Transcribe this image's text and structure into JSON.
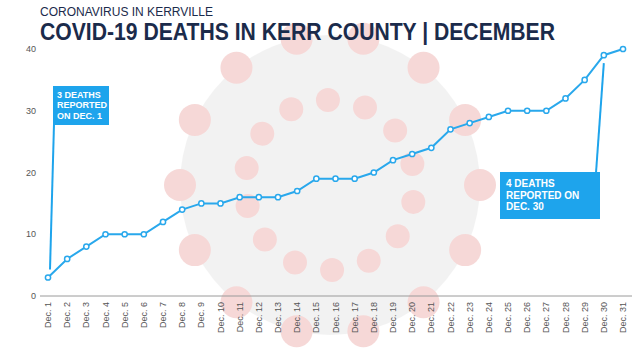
{
  "chart_data": {
    "type": "line",
    "subtitle": "CORONAVIRUS IN KERRVILLE",
    "title": "COVID-19 DEATHS IN KERR COUNTY | DECEMBER",
    "categories": [
      "Dec. 1",
      "Dec. 2",
      "Dec. 3",
      "Dec. 4",
      "Dec. 5",
      "Dec. 6",
      "Dec. 7",
      "Dec. 8",
      "Dec. 9",
      "Dec. 10",
      "Dec. 11",
      "Dec. 12",
      "Dec. 13",
      "Dec. 14",
      "Dec. 15",
      "Dec. 16",
      "Dec. 17",
      "Dec. 18",
      "Dec. 19",
      "Dec. 20",
      "Dec. 21",
      "Dec. 22",
      "Dec. 23",
      "Dec. 24",
      "Dec. 25",
      "Dec. 26",
      "Dec. 27",
      "Dec. 28",
      "Dec. 29",
      "Dec. 30",
      "Dec. 31"
    ],
    "values": [
      3,
      6,
      8,
      10,
      10,
      10,
      12,
      14,
      15,
      15,
      16,
      16,
      16,
      17,
      19,
      19,
      19,
      20,
      22,
      23,
      24,
      27,
      28,
      29,
      30,
      30,
      30,
      32,
      35,
      39,
      40
    ],
    "color": "#29a8ec",
    "marker": "circle",
    "ylim": [
      0,
      40
    ],
    "yticks": [
      0,
      10,
      20,
      30,
      40
    ],
    "grid": false,
    "annotations": [
      {
        "text": "3 DEATHS REPORTED ON DEC. 1",
        "x": "Dec. 1"
      },
      {
        "text": "4 DEATHS REPORTED ON DEC. 30",
        "x": "Dec. 30"
      }
    ]
  }
}
